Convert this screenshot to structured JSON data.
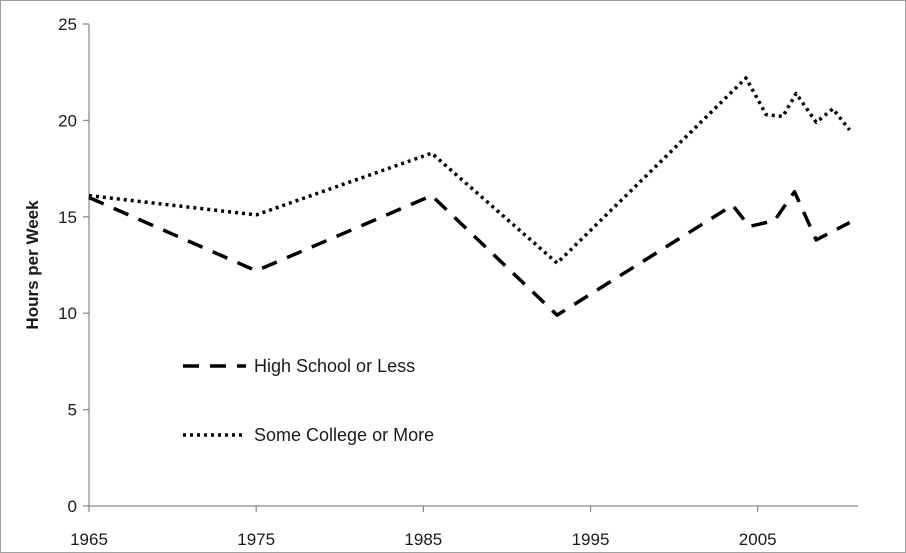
{
  "chart_data": {
    "type": "line",
    "title": "",
    "xlabel": "",
    "ylabel": "Hours per Week",
    "xlim": [
      1965,
      2011
    ],
    "ylim": [
      0,
      25
    ],
    "x_ticks": [
      "1965",
      "1975",
      "1985",
      "1995",
      "2005"
    ],
    "y_ticks": [
      "0",
      "5",
      "10",
      "15",
      "20",
      "25"
    ],
    "grid": false,
    "legend_position": "lower-left",
    "series": [
      {
        "name": "High School or Less",
        "style": "dashed",
        "color": "#000000",
        "x": [
          1965,
          1975,
          1985.5,
          1993,
          2003.5,
          2004.5,
          2006,
          2007.2,
          2008.5,
          2010.5
        ],
        "y": [
          16.0,
          12.2,
          16.1,
          9.9,
          15.6,
          14.5,
          14.8,
          16.3,
          13.8,
          14.7
        ]
      },
      {
        "name": "Some College or More",
        "style": "dotted",
        "color": "#000000",
        "x": [
          1965,
          1975,
          1985.5,
          1993,
          2004.3,
          2005.5,
          2006.5,
          2007.3,
          2008.5,
          2009.5,
          2010.5
        ],
        "y": [
          16.1,
          15.1,
          18.3,
          12.6,
          22.2,
          20.3,
          20.2,
          21.4,
          19.9,
          20.6,
          19.5
        ]
      }
    ]
  }
}
